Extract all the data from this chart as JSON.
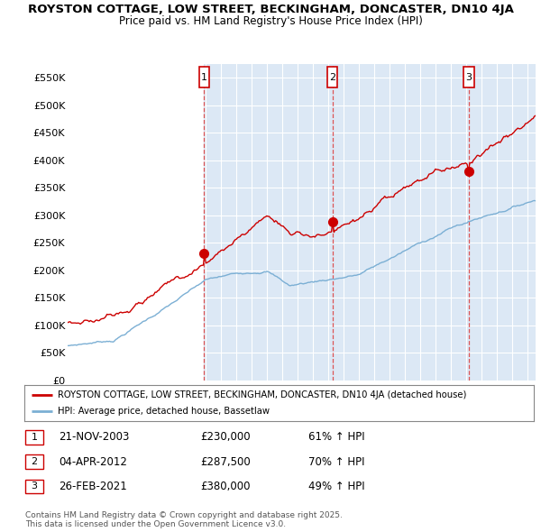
{
  "title1": "ROYSTON COTTAGE, LOW STREET, BECKINGHAM, DONCASTER, DN10 4JA",
  "title2": "Price paid vs. HM Land Registry's House Price Index (HPI)",
  "ylim": [
    0,
    575000
  ],
  "yticks": [
    0,
    50000,
    100000,
    150000,
    200000,
    250000,
    300000,
    350000,
    400000,
    450000,
    500000,
    550000
  ],
  "ytick_labels": [
    "£0",
    "£50K",
    "£100K",
    "£150K",
    "£200K",
    "£250K",
    "£300K",
    "£350K",
    "£400K",
    "£450K",
    "£500K",
    "£550K"
  ],
  "plot_bg_left": "#ffffff",
  "plot_bg_right": "#dce8f5",
  "red_color": "#cc0000",
  "blue_color": "#7bafd4",
  "vline_color": "#dd4444",
  "legend_label_red": "ROYSTON COTTAGE, LOW STREET, BECKINGHAM, DONCASTER, DN10 4JA (detached house)",
  "legend_label_blue": "HPI: Average price, detached house, Bassetlaw",
  "sale1_date": "21-NOV-2003",
  "sale1_price": "£230,000",
  "sale1_pct": "61% ↑ HPI",
  "sale2_date": "04-APR-2012",
  "sale2_price": "£287,500",
  "sale2_pct": "70% ↑ HPI",
  "sale3_date": "26-FEB-2021",
  "sale3_price": "£380,000",
  "sale3_pct": "49% ↑ HPI",
  "footnote": "Contains HM Land Registry data © Crown copyright and database right 2025.\nThis data is licensed under the Open Government Licence v3.0.",
  "sale1_x": 2003.9,
  "sale2_x": 2012.25,
  "sale3_x": 2021.15,
  "sale1_y": 230000,
  "sale2_y": 287500,
  "sale3_y": 380000,
  "xmin": 1995,
  "xmax": 2025.5
}
